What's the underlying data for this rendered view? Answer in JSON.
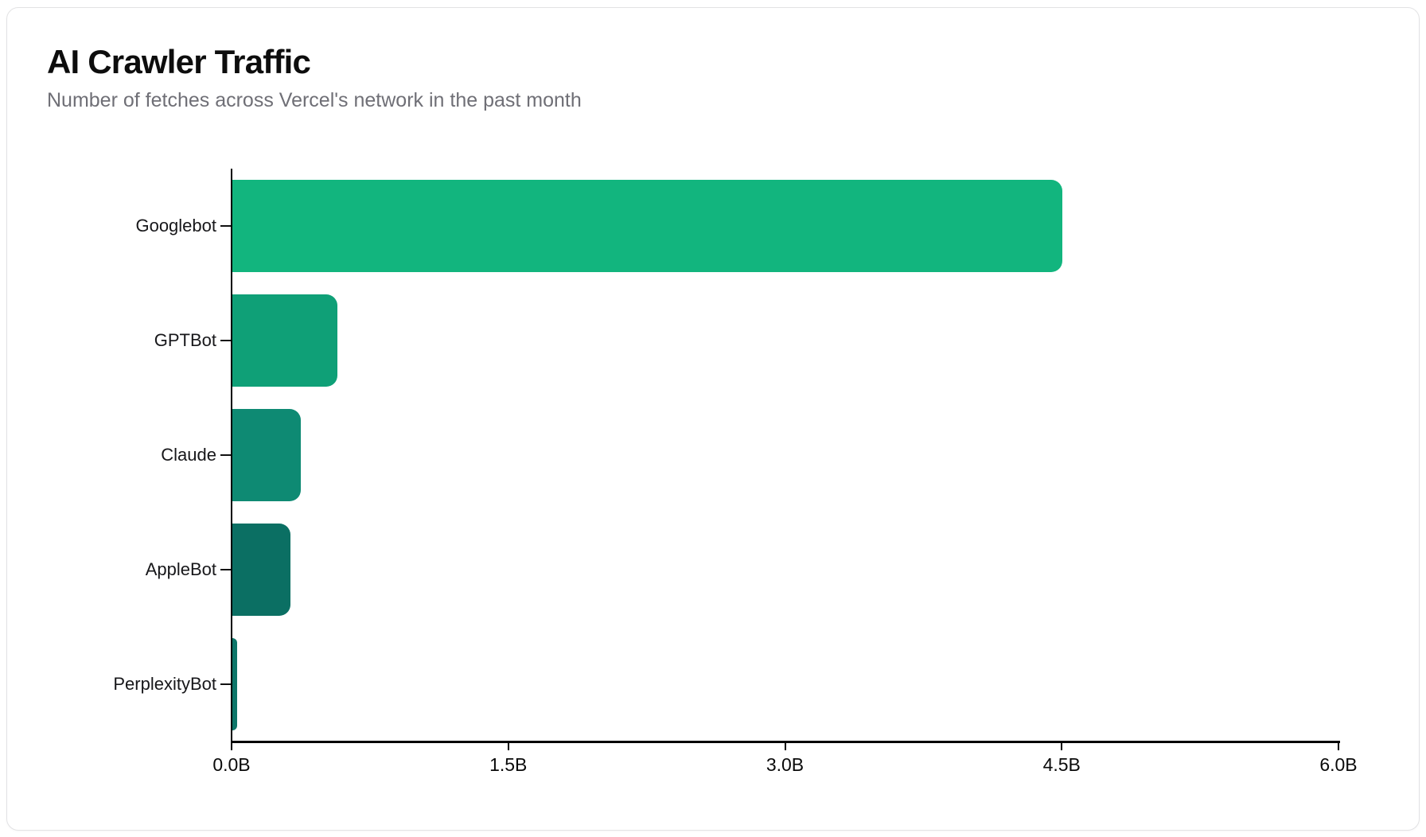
{
  "card": {
    "title": "AI Crawler Traffic",
    "subtitle": "Number of fetches across Vercel's network in the past month"
  },
  "chart_data": {
    "type": "bar",
    "orientation": "horizontal",
    "title": "AI Crawler Traffic",
    "subtitle": "Number of fetches across Vercel's network in the past month",
    "categories": [
      "Googlebot",
      "GPTBot",
      "Claude",
      "AppleBot",
      "PerplexityBot"
    ],
    "values_billions": [
      4.5,
      0.569,
      0.37,
      0.314,
      0.025
    ],
    "unit": "B",
    "xlim": [
      0,
      6
    ],
    "x_tick_values": [
      0,
      1.5,
      3.0,
      4.5,
      6.0
    ],
    "x_tick_labels": [
      "0.0B",
      "1.5B",
      "3.0B",
      "4.5B",
      "6.0B"
    ],
    "grid": false,
    "legend": false,
    "bar_colors": [
      "#12b57e",
      "#0fa077",
      "#0e8a73",
      "#0b6f63",
      "#0d7669"
    ],
    "bar_textures": [
      "solid",
      "solid",
      "solid",
      "dots",
      "dots"
    ],
    "axis_color": "#000000",
    "title_color": "#0d0d0d",
    "subtitle_color": "#6f6f76"
  }
}
